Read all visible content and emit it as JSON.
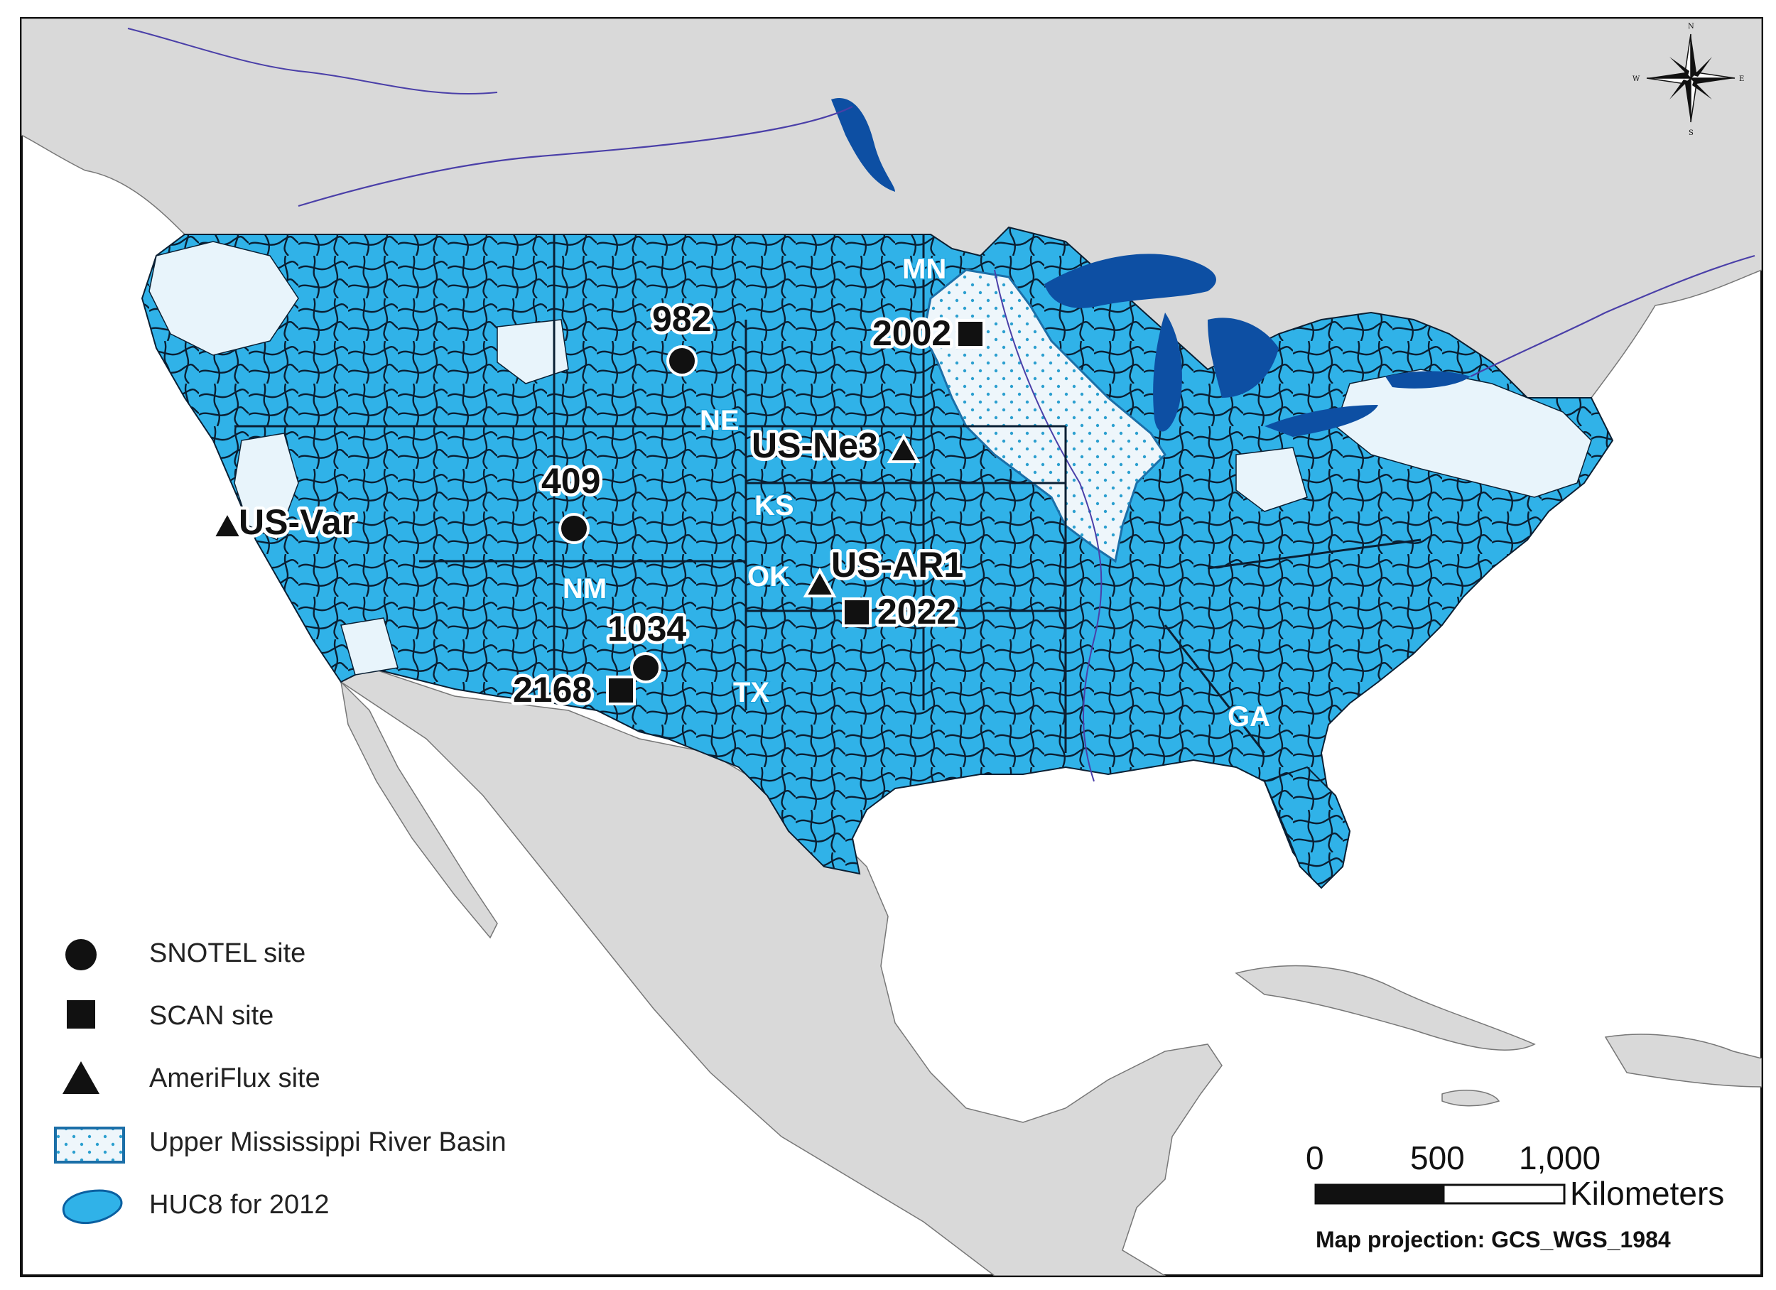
{
  "states": [
    {
      "label": "MN"
    },
    {
      "label": "NE"
    },
    {
      "label": "KS"
    },
    {
      "label": "OK"
    },
    {
      "label": "NM"
    },
    {
      "label": "TX"
    },
    {
      "label": "GA"
    }
  ],
  "sites": [
    {
      "label": "982",
      "type": "snotel"
    },
    {
      "label": "409",
      "type": "snotel"
    },
    {
      "label": "1034",
      "type": "snotel"
    },
    {
      "label": "2002",
      "type": "scan"
    },
    {
      "label": "2022",
      "type": "scan"
    },
    {
      "label": "2168",
      "type": "scan"
    },
    {
      "label": "US-Ne3",
      "type": "ameriflux"
    },
    {
      "label": "US-AR1",
      "type": "ameriflux"
    },
    {
      "label": "US-Var",
      "type": "ameriflux"
    }
  ],
  "legend": {
    "items": [
      {
        "label": "SNOTEL site",
        "symbol": "circle"
      },
      {
        "label": "SCAN site",
        "symbol": "square"
      },
      {
        "label": "AmeriFlux site",
        "symbol": "triangle"
      },
      {
        "label": "Upper Mississippi River Basin",
        "symbol": "dotted-box"
      },
      {
        "label": "HUC8 for 2012",
        "symbol": "blue-blob"
      }
    ]
  },
  "scale_bar": {
    "ticks": [
      "0",
      "500",
      "1,000"
    ],
    "unit": "Kilometers",
    "projection": "Map projection: GCS_WGS_1984"
  },
  "compass": {
    "n": "N",
    "s": "S",
    "e": "E",
    "w": "W"
  },
  "colors": {
    "land": "#d9d9d9",
    "water": "#ffffff",
    "huc8": "#30b2e8",
    "non_huc_us": "#e8f4fb",
    "lakes": "#0d4fa3",
    "rivers": "#4a3fa8",
    "basin_fill": "#eef6fb",
    "basin_dots": "#2b9fcf"
  }
}
